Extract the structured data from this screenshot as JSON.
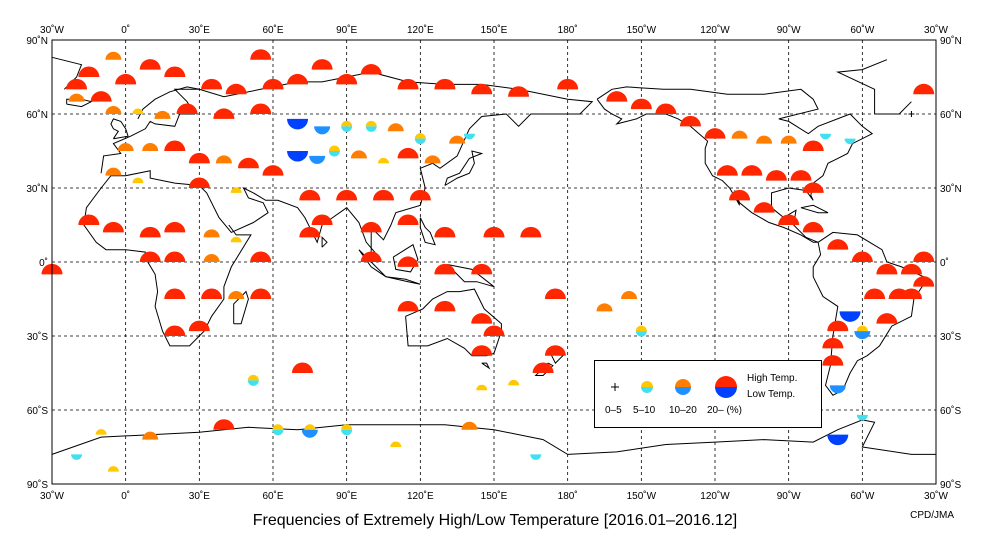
{
  "title": "Frequencies of Extremely High/Low Temperature [2016.01–2016.12]",
  "credit": "CPD/JMA",
  "axes": {
    "lon_labels_top": [
      "30˚W",
      "0˚",
      "30˚E",
      "60˚E",
      "90˚E",
      "120˚E",
      "150˚E",
      "180˚",
      "150˚W",
      "120˚W",
      "90˚W",
      "60˚W",
      "30˚W"
    ],
    "lat_labels": [
      "90˚N",
      "60˚N",
      "30˚N",
      "0˚",
      "30˚S",
      "60˚S",
      "90˚S"
    ]
  },
  "legend": {
    "categories": [
      "0–5",
      "5–10",
      "10–20",
      "20– (%)"
    ],
    "high_label": "High Temp.",
    "low_label": "Low Temp."
  },
  "colors": {
    "high_20": "#ff2600",
    "high_10": "#ff7e00",
    "high_5": "#ffc800",
    "low_20": "#0040ff",
    "low_10": "#1e90ff",
    "low_5": "#40e0f0",
    "coast": "#000000"
  },
  "chart_data": {
    "type": "map-frequency-markers",
    "map_extent": {
      "lon_min": -30,
      "lon_max": 330,
      "lat_min": -90,
      "lat_max": 90
    },
    "note_levels": "level 0 = 0-5%, 1 = 5-10%, 2 = 10-20%, 3 = 20-%",
    "stations": [
      {
        "lon": -15,
        "lat": 75,
        "h": 3,
        "l": 0
      },
      {
        "lon": -20,
        "lat": 65,
        "h": 2,
        "l": 0
      },
      {
        "lon": -10,
        "lat": 65,
        "h": 3,
        "l": 0
      },
      {
        "lon": 0,
        "lat": 72,
        "h": 3,
        "l": 0
      },
      {
        "lon": -5,
        "lat": 82,
        "h": 2,
        "l": 0
      },
      {
        "lon": 10,
        "lat": 78,
        "h": 3,
        "l": 0
      },
      {
        "lon": 20,
        "lat": 75,
        "h": 3,
        "l": 0
      },
      {
        "lon": 35,
        "lat": 70,
        "h": 3,
        "l": 0
      },
      {
        "lon": 45,
        "lat": 68,
        "h": 3,
        "l": 0
      },
      {
        "lon": 55,
        "lat": 82,
        "h": 3,
        "l": 0
      },
      {
        "lon": 60,
        "lat": 70,
        "h": 3,
        "l": 0
      },
      {
        "lon": 70,
        "lat": 72,
        "h": 3,
        "l": 0
      },
      {
        "lon": 80,
        "lat": 78,
        "h": 3,
        "l": 0
      },
      {
        "lon": 90,
        "lat": 72,
        "h": 3,
        "l": 0
      },
      {
        "lon": 100,
        "lat": 76,
        "h": 3,
        "l": 0
      },
      {
        "lon": 115,
        "lat": 70,
        "h": 3,
        "l": 0
      },
      {
        "lon": 130,
        "lat": 70,
        "h": 3,
        "l": 0
      },
      {
        "lon": 145,
        "lat": 68,
        "h": 3,
        "l": 0
      },
      {
        "lon": 160,
        "lat": 67,
        "h": 3,
        "l": 0
      },
      {
        "lon": 180,
        "lat": 70,
        "h": 3,
        "l": 0
      },
      {
        "lon": -5,
        "lat": 60,
        "h": 2,
        "l": 0
      },
      {
        "lon": 5,
        "lat": 60,
        "h": 1,
        "l": 0
      },
      {
        "lon": 15,
        "lat": 58,
        "h": 2,
        "l": 0
      },
      {
        "lon": 25,
        "lat": 60,
        "h": 3,
        "l": 0
      },
      {
        "lon": 40,
        "lat": 58,
        "h": 3,
        "l": 0
      },
      {
        "lon": 55,
        "lat": 60,
        "h": 3,
        "l": 0
      },
      {
        "lon": 70,
        "lat": 58,
        "h": 0,
        "l": 3
      },
      {
        "lon": 80,
        "lat": 55,
        "h": 0,
        "l": 2
      },
      {
        "lon": 90,
        "lat": 55,
        "h": 1,
        "l": 1
      },
      {
        "lon": 100,
        "lat": 55,
        "h": 1,
        "l": 1
      },
      {
        "lon": 110,
        "lat": 53,
        "h": 2,
        "l": 0
      },
      {
        "lon": 120,
        "lat": 50,
        "h": 1,
        "l": 1
      },
      {
        "lon": 135,
        "lat": 48,
        "h": 2,
        "l": 0
      },
      {
        "lon": 140,
        "lat": 52,
        "h": 0,
        "l": 1
      },
      {
        "lon": 70,
        "lat": 45,
        "h": 0,
        "l": 3
      },
      {
        "lon": 78,
        "lat": 43,
        "h": 0,
        "l": 2
      },
      {
        "lon": 85,
        "lat": 45,
        "h": 1,
        "l": 1
      },
      {
        "lon": 95,
        "lat": 42,
        "h": 2,
        "l": 0
      },
      {
        "lon": 105,
        "lat": 40,
        "h": 1,
        "l": 0
      },
      {
        "lon": 115,
        "lat": 42,
        "h": 3,
        "l": 0
      },
      {
        "lon": 125,
        "lat": 40,
        "h": 2,
        "l": 0
      },
      {
        "lon": 0,
        "lat": 45,
        "h": 2,
        "l": 0
      },
      {
        "lon": 10,
        "lat": 45,
        "h": 2,
        "l": 0
      },
      {
        "lon": 20,
        "lat": 45,
        "h": 3,
        "l": 0
      },
      {
        "lon": 30,
        "lat": 40,
        "h": 3,
        "l": 0
      },
      {
        "lon": 40,
        "lat": 40,
        "h": 2,
        "l": 0
      },
      {
        "lon": 50,
        "lat": 38,
        "h": 3,
        "l": 0
      },
      {
        "lon": 60,
        "lat": 35,
        "h": 3,
        "l": 0
      },
      {
        "lon": -5,
        "lat": 35,
        "h": 2,
        "l": 0
      },
      {
        "lon": 5,
        "lat": 32,
        "h": 1,
        "l": 0
      },
      {
        "lon": 30,
        "lat": 30,
        "h": 3,
        "l": 0
      },
      {
        "lon": 45,
        "lat": 28,
        "h": 1,
        "l": 0
      },
      {
        "lon": 75,
        "lat": 25,
        "h": 3,
        "l": 0
      },
      {
        "lon": 90,
        "lat": 25,
        "h": 3,
        "l": 0
      },
      {
        "lon": 105,
        "lat": 25,
        "h": 3,
        "l": 0
      },
      {
        "lon": 120,
        "lat": 25,
        "h": 3,
        "l": 0
      },
      {
        "lon": 115,
        "lat": 15,
        "h": 3,
        "l": 0
      },
      {
        "lon": -15,
        "lat": 15,
        "h": 3,
        "l": 0
      },
      {
        "lon": -5,
        "lat": 12,
        "h": 3,
        "l": 0
      },
      {
        "lon": 10,
        "lat": 10,
        "h": 3,
        "l": 0
      },
      {
        "lon": 20,
        "lat": 12,
        "h": 3,
        "l": 0
      },
      {
        "lon": 35,
        "lat": 10,
        "h": 2,
        "l": 0
      },
      {
        "lon": 45,
        "lat": 8,
        "h": 1,
        "l": 0
      },
      {
        "lon": 75,
        "lat": 10,
        "h": 3,
        "l": 0
      },
      {
        "lon": 80,
        "lat": 15,
        "h": 3,
        "l": 0
      },
      {
        "lon": 100,
        "lat": 12,
        "h": 3,
        "l": 0
      },
      {
        "lon": 130,
        "lat": 10,
        "h": 3,
        "l": 0
      },
      {
        "lon": 150,
        "lat": 10,
        "h": 3,
        "l": 0
      },
      {
        "lon": 165,
        "lat": 10,
        "h": 3,
        "l": 0
      },
      {
        "lon": 20,
        "lat": 0,
        "h": 3,
        "l": 0
      },
      {
        "lon": 10,
        "lat": 0,
        "h": 3,
        "l": 0
      },
      {
        "lon": 35,
        "lat": 0,
        "h": 2,
        "l": 0
      },
      {
        "lon": 55,
        "lat": 0,
        "h": 3,
        "l": 0
      },
      {
        "lon": 100,
        "lat": 0,
        "h": 3,
        "l": 0
      },
      {
        "lon": 115,
        "lat": -2,
        "h": 3,
        "l": 0
      },
      {
        "lon": 130,
        "lat": -5,
        "h": 3,
        "l": 0
      },
      {
        "lon": 145,
        "lat": -5,
        "h": 3,
        "l": 0
      },
      {
        "lon": 20,
        "lat": -15,
        "h": 3,
        "l": 0
      },
      {
        "lon": 35,
        "lat": -15,
        "h": 3,
        "l": 0
      },
      {
        "lon": 45,
        "lat": -15,
        "h": 2,
        "l": 0
      },
      {
        "lon": 55,
        "lat": -15,
        "h": 3,
        "l": 0
      },
      {
        "lon": 20,
        "lat": -30,
        "h": 3,
        "l": 0
      },
      {
        "lon": 30,
        "lat": -28,
        "h": 3,
        "l": 0
      },
      {
        "lon": 115,
        "lat": -20,
        "h": 3,
        "l": 0
      },
      {
        "lon": 130,
        "lat": -20,
        "h": 3,
        "l": 0
      },
      {
        "lon": 145,
        "lat": -25,
        "h": 3,
        "l": 0
      },
      {
        "lon": 150,
        "lat": -30,
        "h": 3,
        "l": 0
      },
      {
        "lon": 145,
        "lat": -38,
        "h": 3,
        "l": 0
      },
      {
        "lon": 175,
        "lat": -38,
        "h": 3,
        "l": 0
      },
      {
        "lon": 170,
        "lat": -45,
        "h": 3,
        "l": 0
      },
      {
        "lon": 175,
        "lat": -15,
        "h": 3,
        "l": 0
      },
      {
        "lon": -165,
        "lat": -20,
        "h": 2,
        "l": 0
      },
      {
        "lon": -155,
        "lat": -15,
        "h": 2,
        "l": 0
      },
      {
        "lon": -150,
        "lat": -28,
        "h": 1,
        "l": 1
      },
      {
        "lon": -140,
        "lat": 60,
        "h": 3,
        "l": 0
      },
      {
        "lon": -150,
        "lat": 62,
        "h": 3,
        "l": 0
      },
      {
        "lon": -160,
        "lat": 65,
        "h": 3,
        "l": 0
      },
      {
        "lon": -130,
        "lat": 55,
        "h": 3,
        "l": 0
      },
      {
        "lon": -120,
        "lat": 50,
        "h": 3,
        "l": 0
      },
      {
        "lon": -110,
        "lat": 50,
        "h": 2,
        "l": 0
      },
      {
        "lon": -100,
        "lat": 48,
        "h": 2,
        "l": 0
      },
      {
        "lon": -90,
        "lat": 48,
        "h": 2,
        "l": 0
      },
      {
        "lon": -80,
        "lat": 45,
        "h": 3,
        "l": 0
      },
      {
        "lon": -75,
        "lat": 52,
        "h": 0,
        "l": 1
      },
      {
        "lon": -65,
        "lat": 50,
        "h": 0,
        "l": 1
      },
      {
        "lon": -115,
        "lat": 35,
        "h": 3,
        "l": 0
      },
      {
        "lon": -105,
        "lat": 35,
        "h": 3,
        "l": 0
      },
      {
        "lon": -95,
        "lat": 33,
        "h": 3,
        "l": 0
      },
      {
        "lon": -85,
        "lat": 33,
        "h": 3,
        "l": 0
      },
      {
        "lon": -80,
        "lat": 28,
        "h": 3,
        "l": 0
      },
      {
        "lon": -110,
        "lat": 25,
        "h": 3,
        "l": 0
      },
      {
        "lon": -100,
        "lat": 20,
        "h": 3,
        "l": 0
      },
      {
        "lon": -90,
        "lat": 15,
        "h": 3,
        "l": 0
      },
      {
        "lon": -80,
        "lat": 12,
        "h": 3,
        "l": 0
      },
      {
        "lon": -70,
        "lat": 5,
        "h": 3,
        "l": 0
      },
      {
        "lon": -60,
        "lat": 0,
        "h": 3,
        "l": 0
      },
      {
        "lon": -50,
        "lat": -5,
        "h": 3,
        "l": 0
      },
      {
        "lon": -40,
        "lat": -5,
        "h": 3,
        "l": 0
      },
      {
        "lon": -35,
        "lat": 0,
        "h": 3,
        "l": 0
      },
      {
        "lon": -45,
        "lat": -15,
        "h": 3,
        "l": 0
      },
      {
        "lon": -55,
        "lat": -15,
        "h": 3,
        "l": 0
      },
      {
        "lon": -65,
        "lat": -20,
        "h": 0,
        "l": 3
      },
      {
        "lon": -60,
        "lat": -28,
        "h": 1,
        "l": 2
      },
      {
        "lon": -50,
        "lat": -25,
        "h": 3,
        "l": 0
      },
      {
        "lon": -70,
        "lat": -28,
        "h": 3,
        "l": 0
      },
      {
        "lon": -72,
        "lat": -35,
        "h": 3,
        "l": 0
      },
      {
        "lon": -72,
        "lat": -42,
        "h": 3,
        "l": 0
      },
      {
        "lon": -70,
        "lat": -50,
        "h": 0,
        "l": 2
      },
      {
        "lon": -70,
        "lat": -70,
        "h": 0,
        "l": 3
      },
      {
        "lon": -40,
        "lat": -15,
        "h": 3,
        "l": 0
      },
      {
        "lon": -35,
        "lat": -10,
        "h": 3,
        "l": 0
      },
      {
        "lon": -30,
        "lat": -5,
        "h": 3,
        "l": 0
      },
      {
        "lon": -20,
        "lat": 70,
        "h": 3,
        "l": 0
      },
      {
        "lon": -20,
        "lat": -78,
        "h": 0,
        "l": 1
      },
      {
        "lon": -10,
        "lat": -70,
        "h": 1,
        "l": 0
      },
      {
        "lon": 10,
        "lat": -72,
        "h": 2,
        "l": 0
      },
      {
        "lon": 40,
        "lat": -68,
        "h": 3,
        "l": 0
      },
      {
        "lon": 62,
        "lat": -68,
        "h": 1,
        "l": 1
      },
      {
        "lon": 75,
        "lat": -68,
        "h": 1,
        "l": 2
      },
      {
        "lon": 90,
        "lat": -68,
        "h": 1,
        "l": 1
      },
      {
        "lon": 110,
        "lat": -75,
        "h": 1,
        "l": 0
      },
      {
        "lon": 140,
        "lat": -68,
        "h": 2,
        "l": 0
      },
      {
        "lon": 167,
        "lat": -78,
        "h": 0,
        "l": 1
      },
      {
        "lon": -5,
        "lat": -85,
        "h": 1,
        "l": 0
      },
      {
        "lon": 52,
        "lat": -48,
        "h": 1,
        "l": 1
      },
      {
        "lon": 72,
        "lat": -45,
        "h": 3,
        "l": 0
      },
      {
        "lon": 145,
        "lat": -52,
        "h": 1,
        "l": 0
      },
      {
        "lon": 158,
        "lat": -50,
        "h": 1,
        "l": 0
      },
      {
        "lon": -60,
        "lat": -62,
        "h": 0,
        "l": 1
      },
      {
        "lon": -40,
        "lat": 60,
        "h": 0,
        "l": 0
      },
      {
        "lon": -35,
        "lat": 68,
        "h": 3,
        "l": 0
      }
    ]
  }
}
